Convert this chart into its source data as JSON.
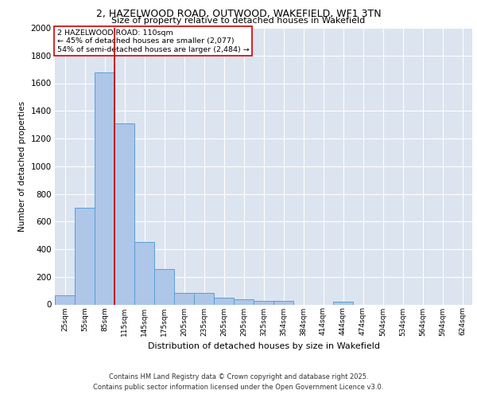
{
  "title_line1": "2, HAZELWOOD ROAD, OUTWOOD, WAKEFIELD, WF1 3TN",
  "title_line2": "Size of property relative to detached houses in Wakefield",
  "xlabel": "Distribution of detached houses by size in Wakefield",
  "ylabel": "Number of detached properties",
  "annotation_title": "2 HAZELWOOD ROAD: 110sqm",
  "annotation_line2": "← 45% of detached houses are smaller (2,077)",
  "annotation_line3": "54% of semi-detached houses are larger (2,484) →",
  "bin_labels": [
    "25sqm",
    "55sqm",
    "85sqm",
    "115sqm",
    "145sqm",
    "175sqm",
    "205sqm",
    "235sqm",
    "265sqm",
    "295sqm",
    "325sqm",
    "354sqm",
    "384sqm",
    "414sqm",
    "444sqm",
    "474sqm",
    "504sqm",
    "534sqm",
    "564sqm",
    "594sqm",
    "624sqm"
  ],
  "bar_values": [
    65,
    700,
    1680,
    1310,
    450,
    255,
    85,
    85,
    48,
    40,
    28,
    25,
    0,
    0,
    18,
    0,
    0,
    0,
    0,
    0,
    0
  ],
  "bar_color": "#aec6e8",
  "bar_edge_color": "#5a9fd4",
  "vline_color": "#cc0000",
  "vline_bin_index": 3,
  "annotation_box_color": "#cc0000",
  "background_color": "#dce4f0",
  "ylim": [
    0,
    2000
  ],
  "yticks": [
    0,
    200,
    400,
    600,
    800,
    1000,
    1200,
    1400,
    1600,
    1800,
    2000
  ],
  "footer_line1": "Contains HM Land Registry data © Crown copyright and database right 2025.",
  "footer_line2": "Contains public sector information licensed under the Open Government Licence v3.0."
}
